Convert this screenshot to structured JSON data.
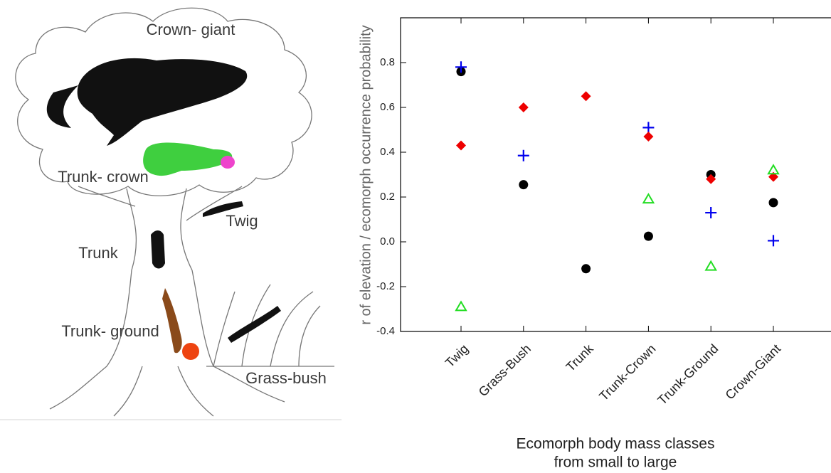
{
  "illustration": {
    "labels": [
      "Crown- giant",
      "Trunk- crown",
      "Twig",
      "Trunk",
      "Trunk- ground",
      "Grass-bush"
    ]
  },
  "chart_data": {
    "type": "scatter",
    "y_label": "r of elevation / ecomorph occurrence probability",
    "x_label": [
      "Ecomorph body mass classes",
      "from small to large"
    ],
    "categories": [
      "Twig",
      "Grass-Bush",
      "Trunk",
      "Trunk-Crown",
      "Trunk-Ground",
      "Crown-Giant"
    ],
    "series": [
      {
        "color": "#000000",
        "marker": "circle",
        "values": [
          0.76,
          0.255,
          -0.12,
          0.025,
          0.3,
          0.175
        ]
      },
      {
        "color": "#0000ee",
        "marker": "plus",
        "values": [
          0.78,
          0.385,
          null,
          0.51,
          0.13,
          0.005
        ]
      },
      {
        "color": "#ee0000",
        "marker": "diamond",
        "values": [
          0.43,
          0.6,
          0.65,
          0.47,
          0.28,
          0.29
        ]
      },
      {
        "color": "#22dd22",
        "marker": "triangle",
        "values": [
          -0.29,
          null,
          null,
          0.19,
          -0.11,
          0.32
        ]
      }
    ],
    "ylim": [
      -0.4,
      1.0
    ],
    "yticks": [
      -0.4,
      -0.2,
      {
        "value": 0,
        "label": "0.0"
      },
      0.2,
      0.4,
      0.6,
      0.8
    ],
    "grid": false
  }
}
